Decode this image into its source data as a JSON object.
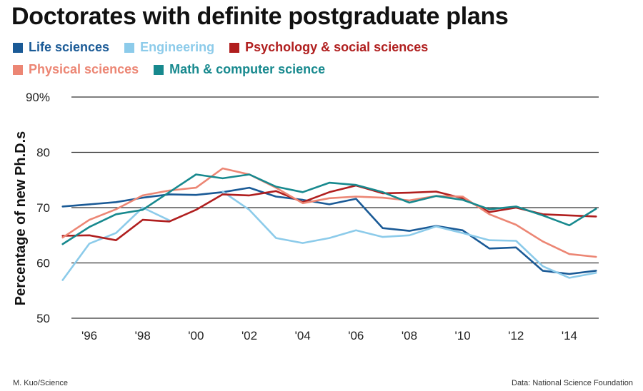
{
  "chart_data": {
    "type": "line",
    "title": "Doctorates with definite postgraduate plans",
    "xlabel": "",
    "ylabel": "Percentage of new Ph.D.s",
    "ylim": [
      50,
      90
    ],
    "y_ticks": [
      {
        "value": 50,
        "label": "50"
      },
      {
        "value": 60,
        "label": "60"
      },
      {
        "value": 70,
        "label": "70"
      },
      {
        "value": 80,
        "label": "80"
      },
      {
        "value": 90,
        "label": "90%"
      }
    ],
    "x_ticks": [
      {
        "value": 1996,
        "label": "'96"
      },
      {
        "value": 1998,
        "label": "'98"
      },
      {
        "value": 2000,
        "label": "'00"
      },
      {
        "value": 2002,
        "label": "'02"
      },
      {
        "value": 2004,
        "label": "'04"
      },
      {
        "value": 2006,
        "label": "'06"
      },
      {
        "value": 2008,
        "label": "'08"
      },
      {
        "value": 2010,
        "label": "'10"
      },
      {
        "value": 2012,
        "label": "'12"
      },
      {
        "value": 2014,
        "label": "'14"
      }
    ],
    "x": [
      1995,
      1996,
      1997,
      1998,
      1999,
      2000,
      2001,
      2002,
      2003,
      2004,
      2005,
      2006,
      2007,
      2008,
      2009,
      2010,
      2011,
      2012,
      2013,
      2014,
      2015
    ],
    "grid": true,
    "legend": "top",
    "series": [
      {
        "name": "Life sciences",
        "color": "#1a5a96",
        "values": [
          70.2,
          70.6,
          71.0,
          71.8,
          72.4,
          72.3,
          72.8,
          73.6,
          72.0,
          71.4,
          70.6,
          71.6,
          66.3,
          65.8,
          66.7,
          65.9,
          62.6,
          62.8,
          58.6,
          58.0,
          58.6
        ]
      },
      {
        "name": "Engineering",
        "color": "#8ccbea",
        "values": [
          56.9,
          63.5,
          65.4,
          70.0,
          67.7,
          null,
          72.9,
          69.6,
          64.5,
          63.6,
          64.5,
          65.9,
          64.7,
          65.0,
          66.6,
          65.4,
          64.1,
          64.0,
          59.4,
          57.3,
          58.2
        ]
      },
      {
        "name": "Psychology & social sciences",
        "color": "#b01e1e",
        "values": [
          64.9,
          65.0,
          64.1,
          67.8,
          67.5,
          69.6,
          72.4,
          72.2,
          73.0,
          71.0,
          72.8,
          74.0,
          72.6,
          72.7,
          72.9,
          71.7,
          69.2,
          70.0,
          68.8,
          68.6,
          68.4
        ]
      },
      {
        "name": "Physical sciences",
        "color": "#ec8674",
        "values": [
          64.6,
          67.8,
          69.7,
          72.2,
          73.1,
          73.6,
          77.1,
          76.0,
          73.6,
          70.8,
          71.7,
          72.0,
          71.8,
          71.3,
          72.1,
          72.0,
          68.8,
          66.9,
          63.9,
          61.6,
          61.1
        ]
      },
      {
        "name": "Math & computer science",
        "color": "#17898e",
        "values": [
          63.4,
          66.5,
          68.8,
          69.6,
          72.8,
          76.0,
          75.3,
          76.0,
          73.8,
          72.8,
          74.5,
          74.1,
          72.8,
          70.9,
          72.1,
          71.4,
          69.7,
          70.2,
          68.6,
          66.8,
          69.8
        ]
      }
    ],
    "credit_left": "M. Kuo/Science",
    "credit_right": "Data: National Science Foundation"
  }
}
